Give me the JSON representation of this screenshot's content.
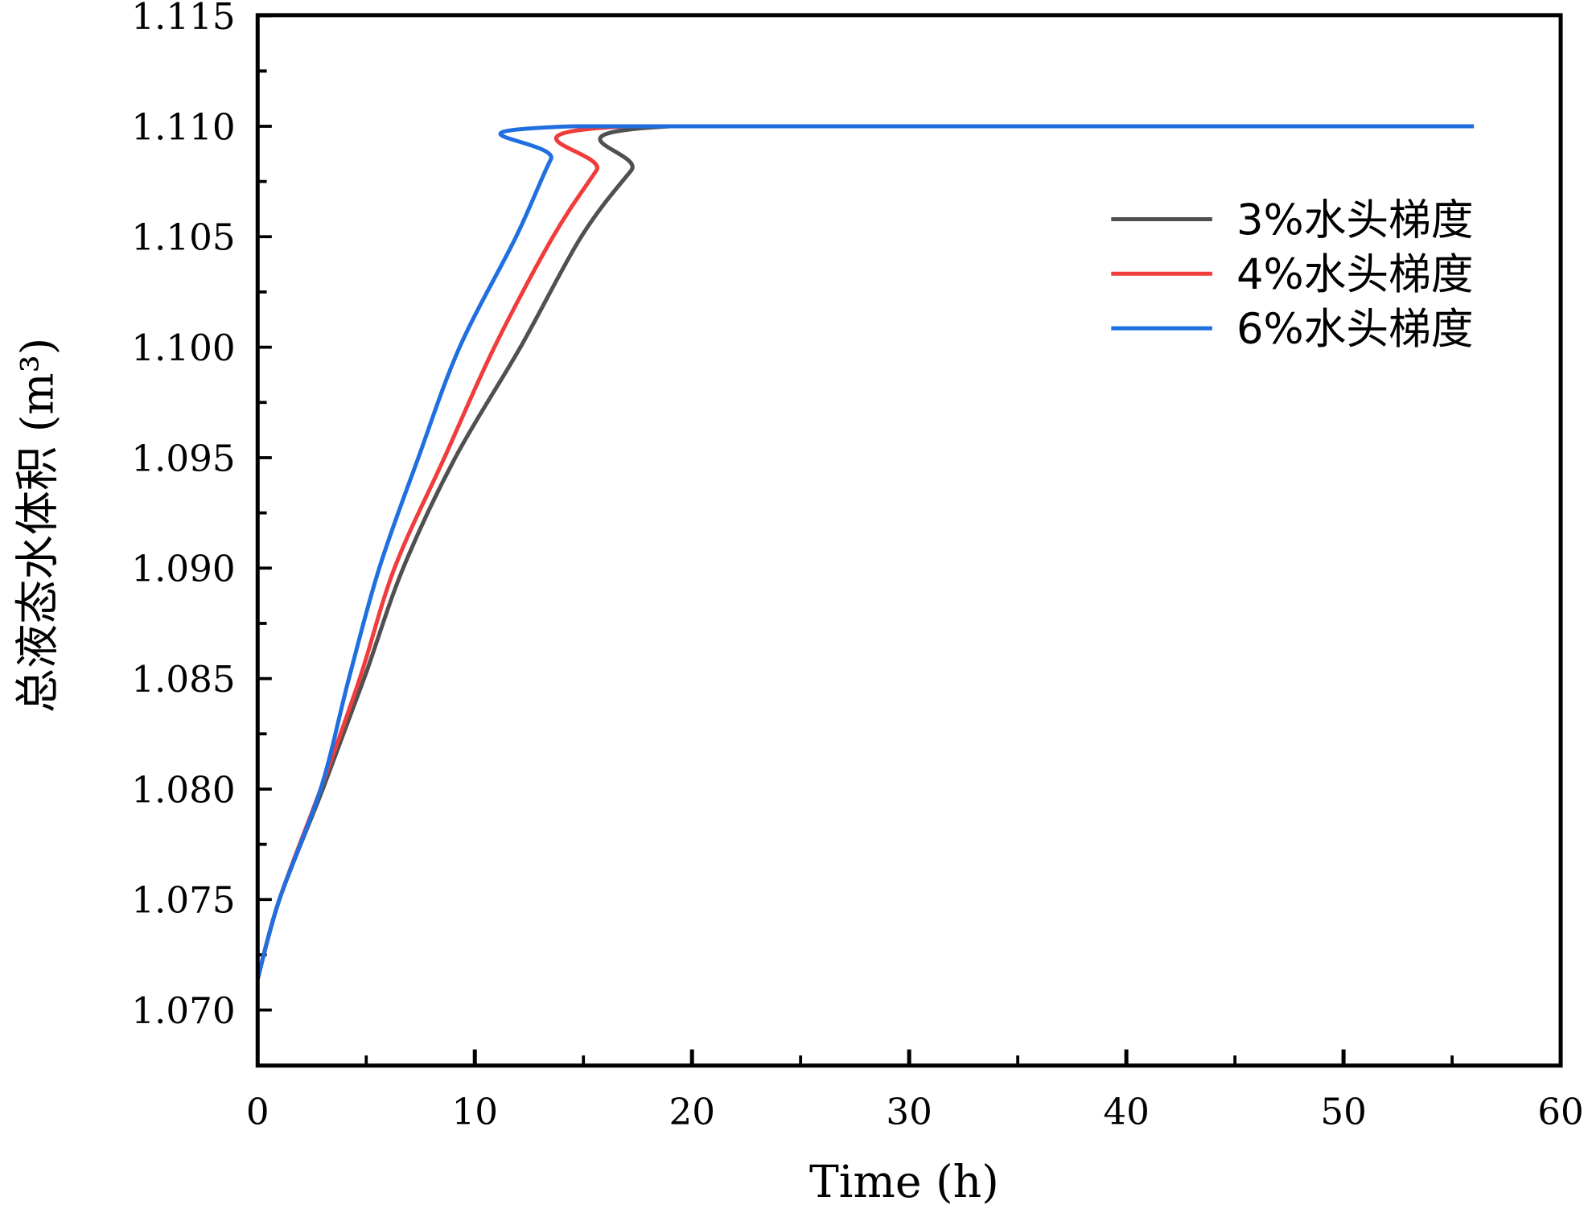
{
  "chart_data": {
    "type": "line",
    "title": "",
    "xlabel": "Time (h)",
    "ylabel": "总液态水体积 (m³)",
    "xlim": [
      0,
      60
    ],
    "ylim": [
      1.0675,
      1.115
    ],
    "xticks": [
      0,
      10,
      20,
      30,
      40,
      50,
      60
    ],
    "xtick_labels": [
      "0",
      "10",
      "20",
      "30",
      "40",
      "50",
      "60"
    ],
    "yticks": [
      1.07,
      1.075,
      1.08,
      1.085,
      1.09,
      1.095,
      1.1,
      1.105,
      1.11,
      1.115
    ],
    "ytick_labels": [
      "1.070",
      "1.075",
      "1.080",
      "1.085",
      "1.090",
      "1.095",
      "1.100",
      "1.105",
      "1.110",
      "1.115"
    ],
    "grid": false,
    "legend_position": "top-right",
    "series": [
      {
        "name": "3%水头梯度",
        "color": "#505050",
        "x": [
          0,
          1,
          3.0,
          4.9,
          6.7,
          9.1,
          12.1,
          14.9,
          17.2,
          19.0,
          56
        ],
        "y": [
          1.0714,
          1.075,
          1.08,
          1.085,
          1.09,
          1.095,
          1.1,
          1.105,
          1.108,
          1.11,
          1.11
        ]
      },
      {
        "name": "4%水头梯度",
        "color": "#f03c3c",
        "x": [
          0,
          1,
          2.9,
          4.7,
          6.3,
          8.6,
          10.9,
          13.6,
          15.6,
          17.0,
          56
        ],
        "y": [
          1.0714,
          1.075,
          1.08,
          1.085,
          1.09,
          1.095,
          1.1,
          1.105,
          1.108,
          1.11,
          1.11
        ]
      },
      {
        "name": "6%水头梯度",
        "color": "#1f6fe0",
        "x": [
          0,
          1,
          2.9,
          4.2,
          5.6,
          7.4,
          9.3,
          11.9,
          13.5,
          14.5,
          56
        ],
        "y": [
          1.0714,
          1.075,
          1.08,
          1.085,
          1.09,
          1.095,
          1.1,
          1.105,
          1.1085,
          1.11,
          1.11
        ]
      }
    ]
  }
}
